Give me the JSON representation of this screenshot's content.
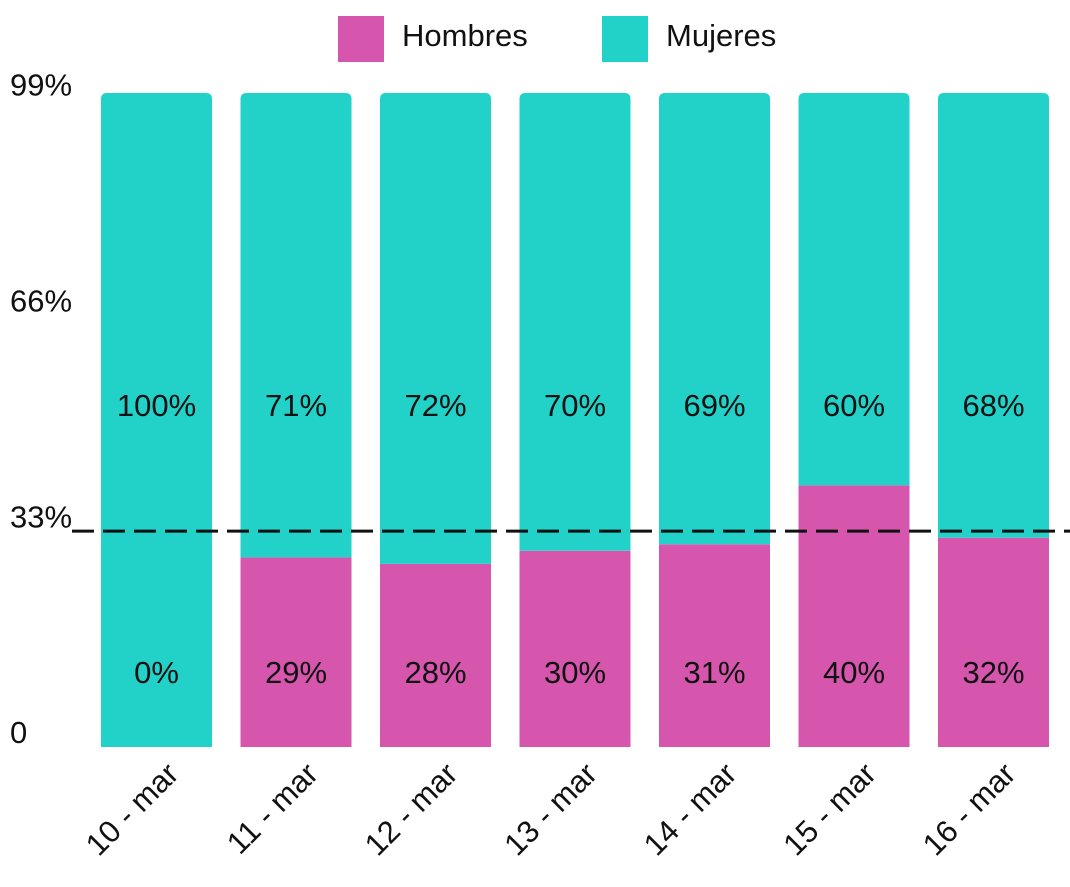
{
  "chart_data": {
    "type": "stacked_bar_percent",
    "categories": [
      "10 - mar",
      "11 - mar",
      "12 - mar",
      "13 - mar",
      "14 - mar",
      "15 - mar",
      "16 - mar"
    ],
    "series": [
      {
        "name": "Hombres",
        "color": "#d655ad",
        "values": [
          0,
          29,
          28,
          30,
          31,
          40,
          32
        ],
        "value_labels": [
          "0%",
          "29%",
          "28%",
          "30%",
          "31%",
          "40%",
          "32%"
        ]
      },
      {
        "name": "Mujeres",
        "color": "#22d1c8",
        "values": [
          100,
          71,
          72,
          70,
          69,
          60,
          68
        ],
        "value_labels": [
          "100%",
          "71%",
          "72%",
          "70%",
          "69%",
          "60%",
          "68%"
        ]
      }
    ],
    "ylim": [
      0,
      100
    ],
    "yticks": [
      0,
      {
        "value": 33,
        "label": "33%"
      },
      {
        "value": 66,
        "label": "66%"
      },
      {
        "value": 99,
        "label": "99%"
      }
    ],
    "reference_line": 33,
    "grid": false,
    "legend": "top"
  }
}
